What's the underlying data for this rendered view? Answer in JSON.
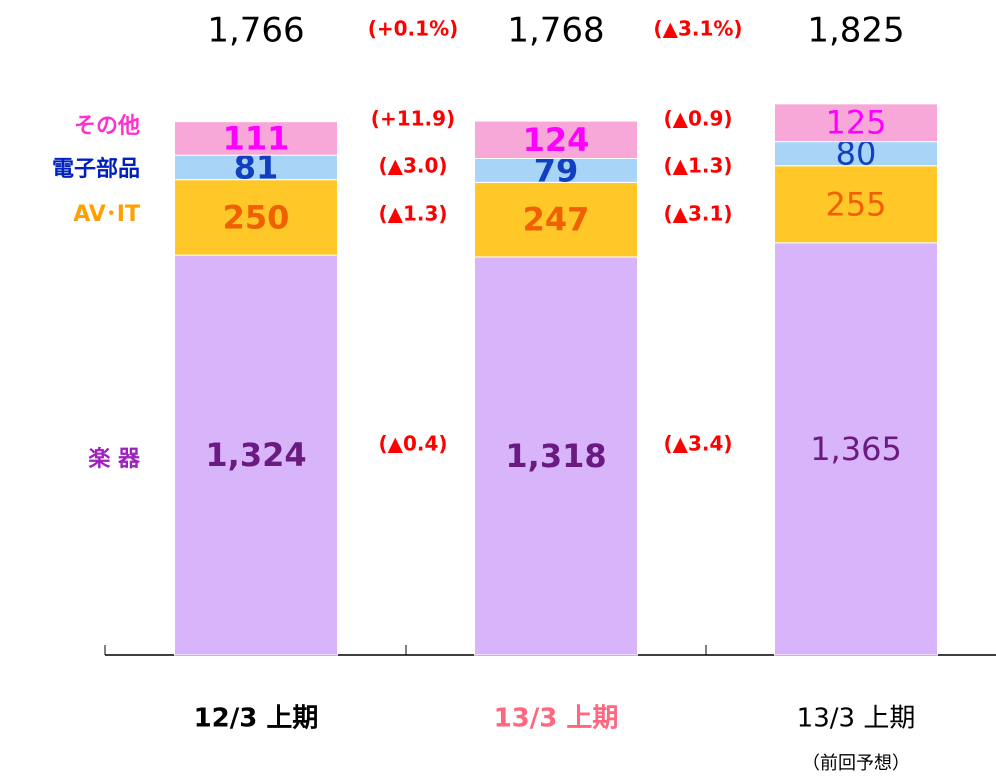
{
  "chart_data": {
    "type": "stacked_bar",
    "categories": [
      "12/3 上期",
      "13/3 上期",
      "13/3 上期"
    ],
    "category_colors": [
      "#000000",
      "#ff6680",
      "#000000"
    ],
    "category_note": "（前回予想）",
    "series": [
      {
        "name": "楽 器",
        "color": "#d8b4fa",
        "name_color": "#a020c0",
        "label_color": "#6a1a80",
        "values": [
          1324,
          1318,
          1365
        ],
        "value_labels": [
          "1,324",
          "1,318",
          "1,365"
        ],
        "changes": [
          "(▲0.4)",
          "(▲3.4)"
        ]
      },
      {
        "name": "AV･IT",
        "color": "#ffc828",
        "name_color": "#ffa000",
        "label_color": "#f06000",
        "values": [
          250,
          247,
          255
        ],
        "changes": [
          "(▲1.3)",
          "(▲3.1)"
        ]
      },
      {
        "name": "電子部品",
        "color": "#a8d4f8",
        "name_color": "#0020c0",
        "label_color": "#1040c0",
        "values": [
          81,
          79,
          80
        ],
        "changes": [
          "(▲3.0)",
          "(▲1.3)"
        ]
      },
      {
        "name": "その他",
        "color": "#f8a8d8",
        "name_color": "#ff30d0",
        "label_color": "#ff00ff",
        "values": [
          111,
          124,
          125
        ],
        "changes": [
          "(+11.9)",
          "(▲0.9)"
        ]
      }
    ],
    "totals": {
      "values": [
        1766,
        1768,
        1825
      ],
      "value_labels": [
        "1,766",
        "1,768",
        "1,825"
      ],
      "changes": [
        "(+0.1%)",
        "(▲3.1%)"
      ]
    }
  }
}
